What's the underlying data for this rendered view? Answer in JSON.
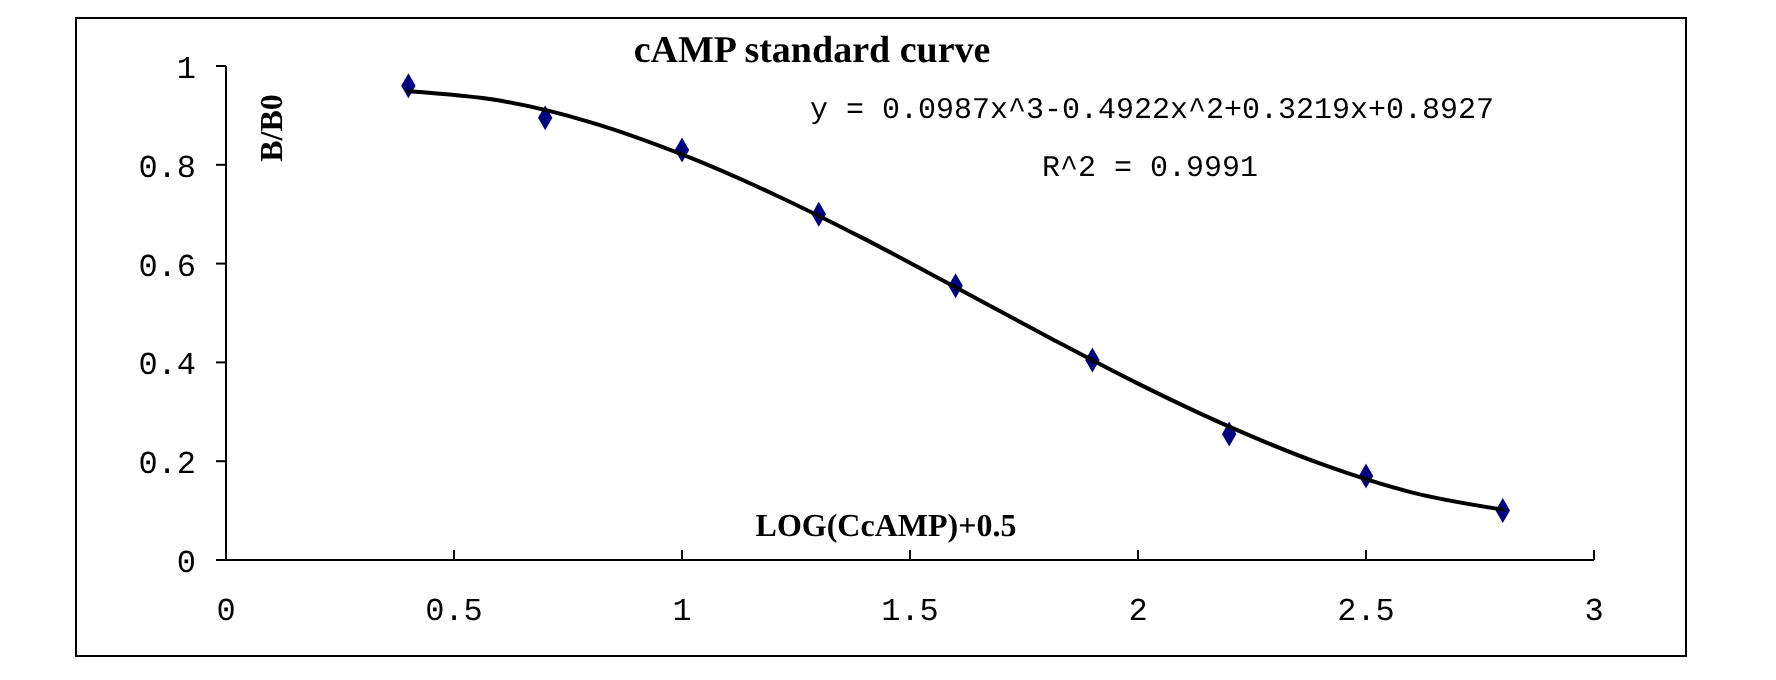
{
  "chart_data": {
    "type": "scatter",
    "title": "cAMP standard curve",
    "xlabel": "LOG(CcAMP)+0.5",
    "ylabel": "B/B0",
    "annotations": [
      "y = 0.0987x^3-0.4922x^2+0.3219x+0.8927",
      "R^2 = 0.9991"
    ],
    "xlim": [
      0,
      3
    ],
    "xticks": [
      0,
      0.5,
      1,
      1.5,
      2,
      2.5,
      3
    ],
    "ylim": [
      0,
      1
    ],
    "yticks": [
      0,
      0.2,
      0.4,
      0.6,
      0.8,
      1
    ],
    "grid": false,
    "series": [
      {
        "color": "#000080",
        "marker": "diamond",
        "x": [
          0.4,
          0.7,
          1.0,
          1.3,
          1.6,
          1.9,
          2.2,
          2.5,
          2.8
        ],
        "values": [
          0.96,
          0.895,
          0.83,
          0.7,
          0.555,
          0.405,
          0.255,
          0.17,
          0.1
        ]
      },
      {
        "type": "line",
        "color": "#000000",
        "marker": "none",
        "line_style": "solid",
        "x": [
          0.4,
          0.6,
          0.8,
          1.0,
          1.2,
          1.4,
          1.6,
          1.8,
          2.0,
          2.2,
          2.4,
          2.6,
          2.8
        ],
        "values": [
          0.949,
          0.93,
          0.886,
          0.821,
          0.741,
          0.65,
          0.552,
          0.453,
          0.357,
          0.27,
          0.195,
          0.137,
          0.102
        ]
      }
    ]
  }
}
